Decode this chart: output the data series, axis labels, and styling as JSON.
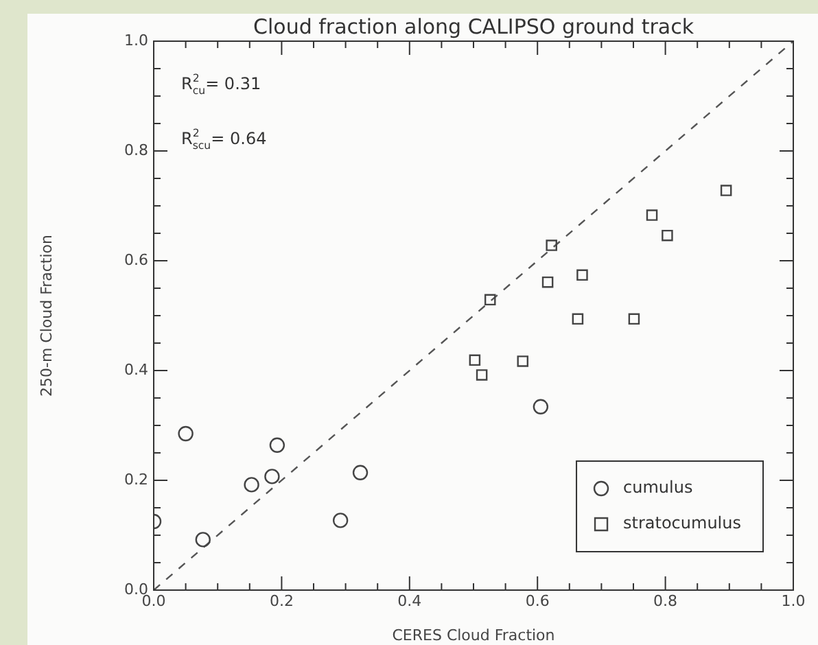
{
  "chart_data": {
    "type": "scatter",
    "title": "Cloud fraction along CALIPSO ground track",
    "xlabel": "CERES Cloud Fraction",
    "ylabel": "250-m Cloud Fraction",
    "annotations": [
      "R$^{2}$$_{cu}$= 0.31",
      "R$^{2}$$_{scu}$= 0.64"
    ],
    "xlim": [
      0,
      1
    ],
    "ylim": [
      0,
      1
    ],
    "xticks": [
      {
        "value": 0,
        "label": "0.0"
      },
      {
        "value": 0.05,
        "label": null
      },
      {
        "value": 0.1,
        "label": null
      },
      {
        "value": 0.15,
        "label": null
      },
      {
        "value": 0.2,
        "label": "0.2"
      },
      {
        "value": 0.25,
        "label": null
      },
      {
        "value": 0.3,
        "label": null
      },
      {
        "value": 0.35,
        "label": null
      },
      {
        "value": 0.4,
        "label": "0.4"
      },
      {
        "value": 0.45,
        "label": null
      },
      {
        "value": 0.5,
        "label": null
      },
      {
        "value": 0.55,
        "label": null
      },
      {
        "value": 0.6,
        "label": "0.6"
      },
      {
        "value": 0.65,
        "label": null
      },
      {
        "value": 0.7,
        "label": null
      },
      {
        "value": 0.75,
        "label": null
      },
      {
        "value": 0.8,
        "label": "0.8"
      },
      {
        "value": 0.85,
        "label": null
      },
      {
        "value": 0.9,
        "label": null
      },
      {
        "value": 0.95,
        "label": null
      },
      {
        "value": 1,
        "label": "1.0"
      }
    ],
    "yticks": [
      {
        "value": 0,
        "label": "0.0"
      },
      {
        "value": 0.05,
        "label": null
      },
      {
        "value": 0.1,
        "label": null
      },
      {
        "value": 0.15,
        "label": null
      },
      {
        "value": 0.2,
        "label": "0.2"
      },
      {
        "value": 0.25,
        "label": null
      },
      {
        "value": 0.3,
        "label": null
      },
      {
        "value": 0.35,
        "label": null
      },
      {
        "value": 0.4,
        "label": "0.4"
      },
      {
        "value": 0.45,
        "label": null
      },
      {
        "value": 0.5,
        "label": null
      },
      {
        "value": 0.55,
        "label": null
      },
      {
        "value": 0.6,
        "label": "0.6"
      },
      {
        "value": 0.65,
        "label": null
      },
      {
        "value": 0.7,
        "label": null
      },
      {
        "value": 0.75,
        "label": null
      },
      {
        "value": 0.8,
        "label": "0.8"
      },
      {
        "value": 0.85,
        "label": null
      },
      {
        "value": 0.9,
        "label": null
      },
      {
        "value": 0.95,
        "label": null
      },
      {
        "value": 1,
        "label": "1.0"
      }
    ],
    "grid": false,
    "legend": "bottom right",
    "series": [
      {
        "name": "cumulus",
        "marker": "circle",
        "color": "#444444",
        "x": [
          0.0,
          0.05,
          0.077,
          0.153,
          0.185,
          0.193,
          0.292,
          0.323,
          0.605
        ],
        "values": [
          0.125,
          0.285,
          0.092,
          0.192,
          0.207,
          0.264,
          0.127,
          0.214,
          0.334
        ]
      },
      {
        "name": "stratocumulus",
        "marker": "square",
        "color": "#444444",
        "x": [
          0.502,
          0.513,
          0.577,
          0.526,
          0.616,
          0.622,
          0.67,
          0.663,
          0.751,
          0.779,
          0.803,
          0.895
        ],
        "values": [
          0.419,
          0.392,
          0.417,
          0.529,
          0.561,
          0.628,
          0.574,
          0.494,
          0.494,
          0.683,
          0.646,
          0.728
        ]
      },
      {
        "type": "line",
        "line_style": "dashed",
        "marker": "none",
        "color": "#555555",
        "x": [
          0,
          1
        ],
        "values": [
          0,
          1
        ]
      }
    ]
  }
}
